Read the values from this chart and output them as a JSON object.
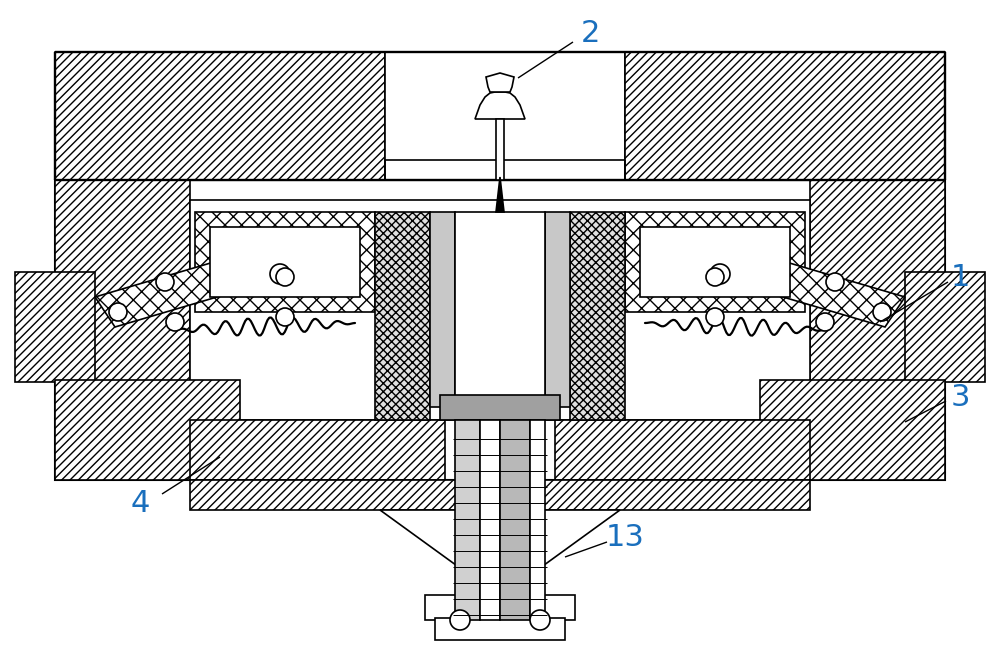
{
  "bg": "#ffffff",
  "lc": "#000000",
  "label_color": "#1a6fbd",
  "fig_w": 10.0,
  "fig_h": 6.67,
  "dpi": 100,
  "lw": 1.2,
  "fs": 22
}
